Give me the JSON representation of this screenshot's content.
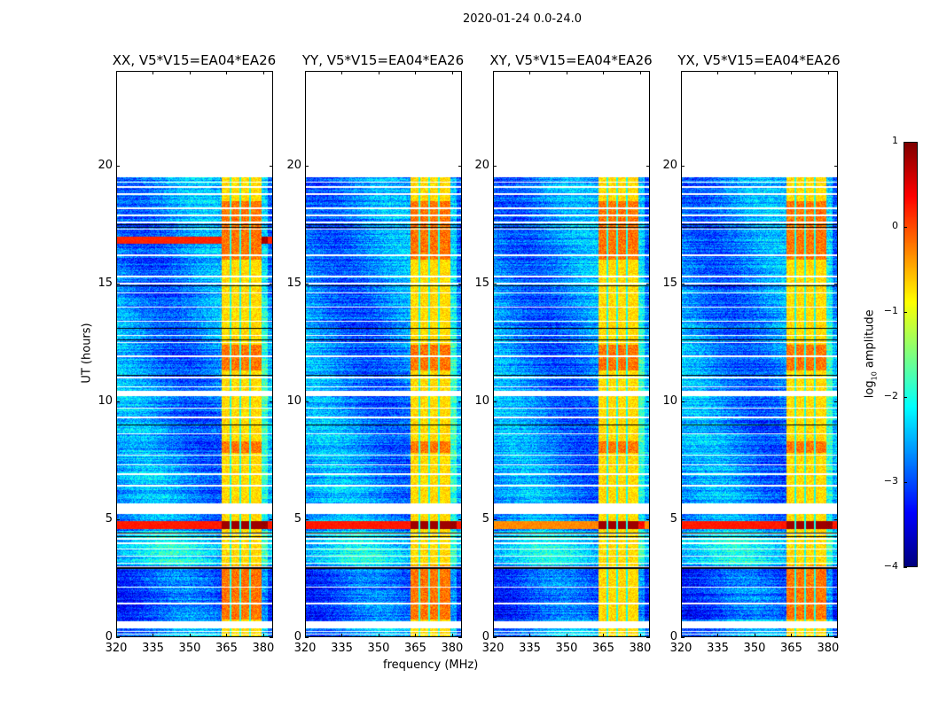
{
  "chart_data": {
    "type": "heatmap",
    "suptitle": "2020-01-24 0.0-24.0",
    "panels": [
      {
        "title": "XX, V5*V15=EA04*EA26",
        "pol": "XX"
      },
      {
        "title": "YY, V5*V15=EA04*EA26",
        "pol": "YY"
      },
      {
        "title": "XY, V5*V15=EA04*EA26",
        "pol": "XY"
      },
      {
        "title": "YX, V5*V15=EA04*EA26",
        "pol": "YX"
      }
    ],
    "xlabel": "frequency (MHz)",
    "ylabel": "UT (hours)",
    "xlim": [
      320,
      384
    ],
    "ylim": [
      0,
      24
    ],
    "xticks": [
      "320",
      "335",
      "350",
      "365",
      "380"
    ],
    "yticks": [
      "0",
      "5",
      "10",
      "15",
      "20"
    ],
    "colorbar": {
      "label_prefix": "log",
      "label_sub": "10",
      "label_suffix": " amplitude",
      "range": [
        -4,
        1
      ],
      "ticks": [
        "1",
        "0",
        "−1",
        "−2",
        "−3",
        "−4"
      ],
      "colormap": "jet"
    },
    "data_end_hours": 19.5,
    "flagged_ranges_hours": [
      [
        0.35,
        0.65
      ],
      [
        5.2,
        5.65
      ],
      [
        10.2,
        10.45
      ]
    ],
    "strong_channel_band_mhz": [
      363,
      379.5
    ],
    "channel_gaps_mhz": [
      366.9,
      370.8,
      374.8
    ],
    "bright_events_hours": [
      [
        4.55,
        4.9
      ]
    ],
    "xx_yx_extra_event_hours": [
      16.7,
      17.0
    ],
    "typical_background_log10": -2.7,
    "typical_band_log10": -0.7
  }
}
